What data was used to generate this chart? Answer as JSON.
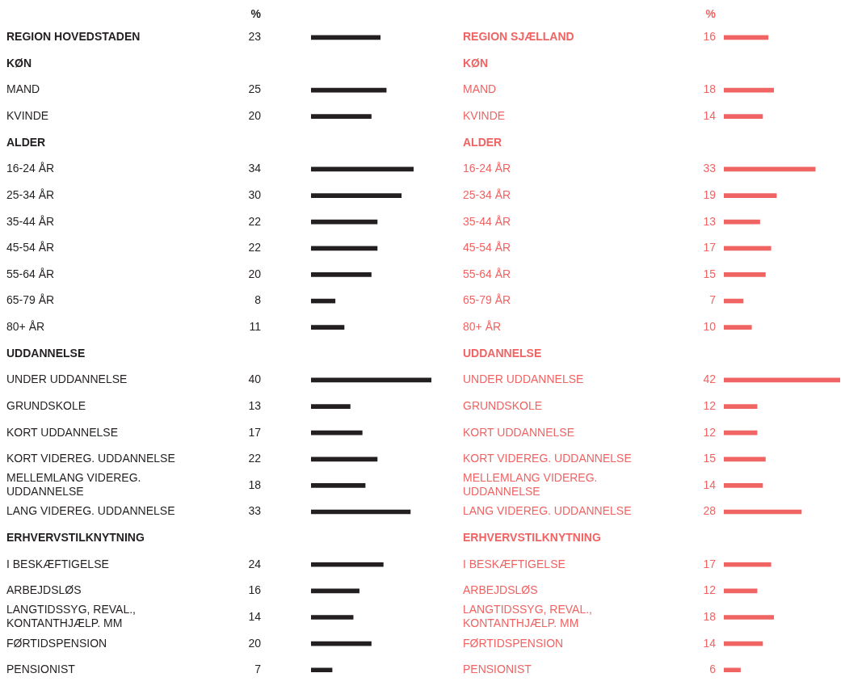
{
  "chart_data": [
    {
      "type": "bar",
      "orientation": "horizontal",
      "xlabel": "%",
      "data_labels": true,
      "color": "#231f20",
      "categories": [
        "REGION HOVEDSTADEN",
        "KØN",
        "MAND",
        "KVINDE",
        "ALDER",
        "16-24 ÅR",
        "25-34 ÅR",
        "35-44 ÅR",
        "45-54 ÅR",
        "55-64 ÅR",
        "65-79 ÅR",
        "80+ ÅR",
        "UDDANNELSE",
        "UNDER UDDANNELSE",
        "GRUNDSKOLE",
        "KORT UDDANNELSE",
        "KORT VIDEREG. UDDANNELSE",
        "MELLEMLANG VIDEREG. UDDANNELSE",
        "LANG VIDEREG. UDDANNELSE",
        "ERHVERVSTILKNYTNING",
        "I BESKÆFTIGELSE",
        "ARBEJDSLØS",
        "LANGTIDSSYG, REVAL., KONTANTHJÆLP. MM",
        "FØRTIDSPENSION",
        "PENSIONIST"
      ],
      "values": [
        23,
        null,
        25,
        20,
        null,
        34,
        30,
        22,
        22,
        20,
        8,
        11,
        null,
        40,
        13,
        17,
        22,
        18,
        33,
        null,
        24,
        16,
        14,
        20,
        7
      ]
    },
    {
      "type": "bar",
      "orientation": "horizontal",
      "xlabel": "%",
      "data_labels": true,
      "color": "#f06464",
      "categories": [
        "REGION SJÆLLAND",
        "KØN",
        "MAND",
        "KVINDE",
        "ALDER",
        "16-24 ÅR",
        "25-34 ÅR",
        "35-44 ÅR",
        "45-54 ÅR",
        "55-64 ÅR",
        "65-79 ÅR",
        "80+ ÅR",
        "UDDANNELSE",
        "UNDER UDDANNELSE",
        "GRUNDSKOLE",
        "KORT UDDANNELSE",
        "KORT VIDEREG. UDDANNELSE",
        "MELLEMLANG VIDEREG. UDDANNELSE",
        "LANG VIDEREG. UDDANNELSE",
        "ERHVERVSTILKNYTNING",
        "I BESKÆFTIGELSE",
        "ARBEJDSLØS",
        "LANGTIDSSYG, REVAL., KONTANTHJÆLP. MM",
        "FØRTIDSPENSION",
        "PENSIONIST"
      ],
      "values": [
        16,
        null,
        18,
        14,
        null,
        33,
        19,
        13,
        17,
        15,
        7,
        10,
        null,
        42,
        12,
        12,
        15,
        14,
        28,
        null,
        17,
        12,
        18,
        14,
        6
      ]
    }
  ]
}
